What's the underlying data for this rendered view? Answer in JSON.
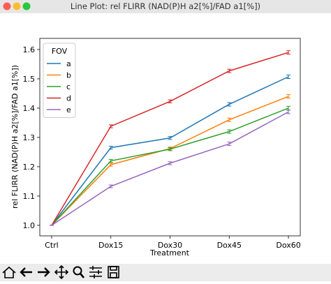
{
  "window": {
    "title": "Line Plot: rel FLIRR (NAD(P)H a2[%]/FAD a1[%])"
  },
  "chart_data": {
    "type": "line",
    "xlabel": "Treatment",
    "ylabel": "rel FLIRR (NAD(P)H a2[%]/FAD a1[%])",
    "categories": [
      "Ctrl",
      "Dox15",
      "Dox30",
      "Dox45",
      "Dox60"
    ],
    "xlim": [
      -0.2,
      4.2
    ],
    "ylim": [
      0.964,
      1.638
    ],
    "yticks": [
      {
        "value": 1.0,
        "label": "1.0"
      },
      {
        "value": 1.1,
        "label": "1.1"
      },
      {
        "value": 1.2,
        "label": "1.2"
      },
      {
        "value": 1.3,
        "label": "1.3"
      },
      {
        "value": 1.4,
        "label": "1.4"
      },
      {
        "value": 1.5,
        "label": "1.5"
      },
      {
        "value": 1.6,
        "label": "1.6"
      }
    ],
    "legend": {
      "title": "FOV",
      "loc": "upper left"
    },
    "grid": false,
    "series": [
      {
        "name": "a",
        "color": "#1f77b4",
        "values": [
          1.0,
          1.265,
          1.298,
          1.413,
          1.507
        ],
        "errors": [
          0,
          0.005,
          0.005,
          0.006,
          0.006
        ]
      },
      {
        "name": "b",
        "color": "#ff7f0e",
        "values": [
          1.0,
          1.207,
          1.262,
          1.36,
          1.44
        ],
        "errors": [
          0,
          0.005,
          0.005,
          0.006,
          0.006
        ]
      },
      {
        "name": "c",
        "color": "#2ca02c",
        "values": [
          1.0,
          1.22,
          1.26,
          1.32,
          1.4
        ],
        "errors": [
          0,
          0.005,
          0.005,
          0.006,
          0.006
        ]
      },
      {
        "name": "d",
        "color": "#d62728",
        "values": [
          1.0,
          1.338,
          1.423,
          1.527,
          1.59
        ],
        "errors": [
          0,
          0.005,
          0.005,
          0.006,
          0.006
        ]
      },
      {
        "name": "e",
        "color": "#9467bd",
        "values": [
          1.0,
          1.133,
          1.212,
          1.278,
          1.387
        ],
        "errors": [
          0,
          0.005,
          0.005,
          0.006,
          0.006
        ]
      }
    ]
  }
}
